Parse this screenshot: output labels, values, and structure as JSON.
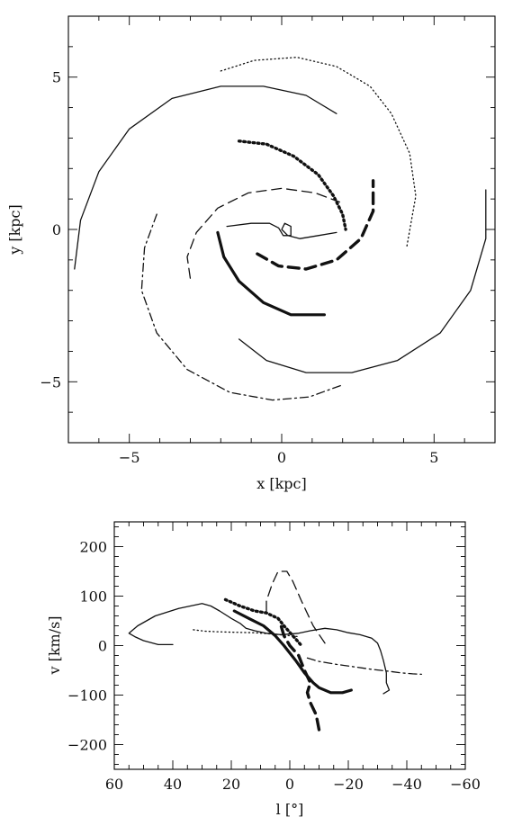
{
  "chart_data": [
    {
      "type": "line",
      "xlabel": "x [kpc]",
      "ylabel": "y [kpc]",
      "xlim": [
        -7,
        7
      ],
      "ylim": [
        -7,
        7
      ],
      "xticks": [
        -5,
        0,
        5
      ],
      "yticks": [
        -5,
        0,
        5
      ],
      "grid": false,
      "series": [
        {
          "style": "solid-thin",
          "points": [
            [
              -6.8,
              -1.3
            ],
            [
              -6.6,
              0.3
            ],
            [
              -6.0,
              1.9
            ],
            [
              -5.0,
              3.3
            ],
            [
              -3.6,
              4.3
            ],
            [
              -2.0,
              4.7
            ],
            [
              -0.6,
              4.7
            ],
            [
              0.8,
              4.4
            ],
            [
              1.8,
              3.8
            ]
          ]
        },
        {
          "style": "solid-thin",
          "points": [
            [
              -1.4,
              -3.6
            ],
            [
              -0.5,
              -4.3
            ],
            [
              0.8,
              -4.7
            ],
            [
              2.3,
              -4.7
            ],
            [
              3.8,
              -4.3
            ],
            [
              5.2,
              -3.4
            ],
            [
              6.2,
              -2.0
            ],
            [
              6.7,
              -0.3
            ],
            [
              6.7,
              1.3
            ]
          ]
        },
        {
          "style": "solid-thin",
          "points": [
            [
              -1.8,
              0.1
            ],
            [
              -1.0,
              0.2
            ],
            [
              -0.4,
              0.2
            ],
            [
              -0.1,
              0.05
            ],
            [
              0.05,
              -0.2
            ],
            [
              0.3,
              -0.2
            ],
            [
              0.3,
              0.1
            ],
            [
              0.1,
              0.2
            ],
            [
              0.0,
              0.0
            ],
            [
              0.2,
              -0.2
            ],
            [
              0.6,
              -0.3
            ],
            [
              1.2,
              -0.2
            ],
            [
              1.8,
              -0.1
            ]
          ]
        },
        {
          "style": "dotted-thin",
          "points": [
            [
              -2.0,
              5.2
            ],
            [
              -0.9,
              5.55
            ],
            [
              0.5,
              5.65
            ],
            [
              1.8,
              5.35
            ],
            [
              2.9,
              4.7
            ],
            [
              3.6,
              3.8
            ],
            [
              4.2,
              2.5
            ],
            [
              4.4,
              1.1
            ],
            [
              4.1,
              -0.6
            ]
          ]
        },
        {
          "style": "dotted-thick",
          "points": [
            [
              -1.4,
              2.9
            ],
            [
              -0.5,
              2.8
            ],
            [
              0.4,
              2.4
            ],
            [
              1.2,
              1.8
            ],
            [
              1.7,
              1.1
            ],
            [
              2.0,
              0.5
            ],
            [
              2.1,
              0.0
            ]
          ]
        },
        {
          "style": "dashed-thin",
          "points": [
            [
              -3.0,
              -1.6
            ],
            [
              -3.1,
              -0.9
            ],
            [
              -2.8,
              -0.1
            ],
            [
              -2.1,
              0.7
            ],
            [
              -1.1,
              1.2
            ],
            [
              0.0,
              1.35
            ],
            [
              1.1,
              1.2
            ],
            [
              1.9,
              0.9
            ]
          ]
        },
        {
          "style": "dashed-thick",
          "points": [
            [
              -0.8,
              -0.8
            ],
            [
              -0.1,
              -1.2
            ],
            [
              0.8,
              -1.3
            ],
            [
              1.8,
              -1.0
            ],
            [
              2.6,
              -0.3
            ],
            [
              3.0,
              0.6
            ],
            [
              3.0,
              1.6
            ]
          ]
        },
        {
          "style": "solid-thick",
          "points": [
            [
              -2.1,
              -0.1
            ],
            [
              -1.9,
              -0.9
            ],
            [
              -1.4,
              -1.7
            ],
            [
              -0.6,
              -2.4
            ],
            [
              0.3,
              -2.8
            ],
            [
              1.4,
              -2.8
            ]
          ]
        },
        {
          "style": "dashdot-thin",
          "points": [
            [
              -4.1,
              0.5
            ],
            [
              -4.5,
              -0.6
            ],
            [
              -4.6,
              -2.0
            ],
            [
              -4.1,
              -3.4
            ],
            [
              -3.1,
              -4.6
            ],
            [
              -1.7,
              -5.35
            ],
            [
              -0.3,
              -5.6
            ],
            [
              0.9,
              -5.5
            ],
            [
              2.0,
              -5.1
            ]
          ]
        }
      ]
    },
    {
      "type": "line",
      "xlabel": "l [°]",
      "ylabel": "v [km/s]",
      "xlim": [
        60,
        -60
      ],
      "ylim": [
        -250,
        250
      ],
      "xticks": [
        60,
        40,
        20,
        0,
        -20,
        -40,
        -60
      ],
      "yticks": [
        200,
        100,
        0,
        -100,
        -200
      ],
      "grid": false,
      "series": [
        {
          "style": "solid-thin",
          "points": [
            [
              40,
              2
            ],
            [
              45,
              2
            ],
            [
              50,
              10
            ],
            [
              53,
              18
            ],
            [
              55,
              25
            ],
            [
              52,
              40
            ],
            [
              46,
              60
            ],
            [
              38,
              75
            ],
            [
              30,
              85
            ],
            [
              27,
              80
            ],
            [
              24,
              70
            ],
            [
              20,
              55
            ],
            [
              17,
              45
            ],
            [
              15,
              35
            ],
            [
              12,
              30
            ],
            [
              8,
              25
            ],
            [
              3,
              22
            ],
            [
              -3,
              25
            ],
            [
              -7,
              30
            ],
            [
              -12,
              35
            ],
            [
              -16,
              32
            ],
            [
              -20,
              26
            ],
            [
              -24,
              22
            ],
            [
              -28,
              15
            ],
            [
              -30,
              5
            ],
            [
              -31,
              -10
            ],
            [
              -32,
              -30
            ],
            [
              -33,
              -55
            ],
            [
              -33,
              -75
            ],
            [
              -34,
              -90
            ],
            [
              -32,
              -97
            ]
          ]
        },
        {
          "style": "dotted-thin",
          "points": [
            [
              33,
              32
            ],
            [
              29,
              29
            ],
            [
              25,
              28
            ],
            [
              20,
              27
            ],
            [
              12,
              26
            ],
            [
              5,
              23
            ],
            [
              0,
              20
            ],
            [
              -3,
              18
            ]
          ]
        },
        {
          "style": "dotted-thick",
          "points": [
            [
              22,
              93
            ],
            [
              17,
              80
            ],
            [
              12,
              70
            ],
            [
              8,
              66
            ],
            [
              4,
              55
            ],
            [
              2,
              40
            ],
            [
              -1,
              20
            ],
            [
              -4,
              0
            ]
          ]
        },
        {
          "style": "dashed-thin",
          "points": [
            [
              -12,
              5
            ],
            [
              -8,
              40
            ],
            [
              -4,
              90
            ],
            [
              -1,
              130
            ],
            [
              1,
              150
            ],
            [
              4,
              150
            ],
            [
              6,
              125
            ],
            [
              8,
              90
            ],
            [
              8,
              65
            ]
          ]
        },
        {
          "style": "dashed-thick",
          "points": [
            [
              -10,
              -170
            ],
            [
              -9,
              -140
            ],
            [
              -7,
              -115
            ],
            [
              -6,
              -95
            ],
            [
              -7,
              -75
            ],
            [
              -5,
              -50
            ],
            [
              -3,
              -20
            ],
            [
              0,
              0
            ],
            [
              2,
              20
            ],
            [
              3,
              40
            ]
          ]
        },
        {
          "style": "solid-thick",
          "points": [
            [
              19,
              70
            ],
            [
              14,
              55
            ],
            [
              9,
              40
            ],
            [
              5,
              20
            ],
            [
              2,
              0
            ],
            [
              -2,
              -30
            ],
            [
              -5,
              -55
            ],
            [
              -8,
              -75
            ],
            [
              -10,
              -85
            ],
            [
              -14,
              -95
            ],
            [
              -18,
              -95
            ],
            [
              -21,
              -90
            ]
          ]
        },
        {
          "style": "dashdot-thin",
          "points": [
            [
              -6,
              -25
            ],
            [
              -10,
              -32
            ],
            [
              -16,
              -38
            ],
            [
              -22,
              -43
            ],
            [
              -28,
              -48
            ],
            [
              -34,
              -52
            ],
            [
              -38,
              -55
            ],
            [
              -42,
              -57
            ],
            [
              -45,
              -58
            ]
          ]
        }
      ]
    }
  ]
}
